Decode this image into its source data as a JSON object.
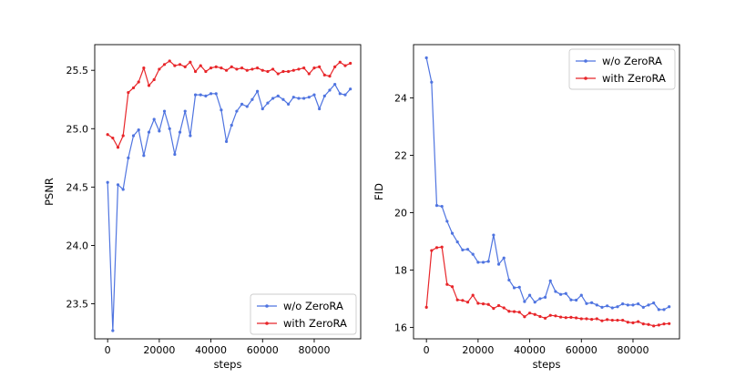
{
  "chart_data": [
    {
      "type": "line",
      "xlabel": "steps",
      "ylabel": "PSNR",
      "xlim": [
        -5000,
        98000
      ],
      "ylim": [
        23.2,
        25.72
      ],
      "xticks": [
        0,
        20000,
        40000,
        60000,
        80000
      ],
      "yticks": [
        23.5,
        24.0,
        24.5,
        25.0,
        25.5
      ],
      "ytick_labels": [
        "23.5",
        "24.0",
        "24.5",
        "25.0",
        "25.5"
      ],
      "legend_position": "lower-right",
      "grid": false,
      "series": [
        {
          "name": "w/o ZeroRA",
          "color": "#4f74e0",
          "x": [
            0,
            2000,
            4000,
            6000,
            8000,
            10000,
            12000,
            14000,
            16000,
            18000,
            20000,
            22000,
            24000,
            26000,
            28000,
            30000,
            32000,
            34000,
            36000,
            38000,
            40000,
            42000,
            44000,
            46000,
            48000,
            50000,
            52000,
            54000,
            56000,
            58000,
            60000,
            62000,
            64000,
            66000,
            68000,
            70000,
            72000,
            74000,
            76000,
            78000,
            80000,
            82000,
            84000,
            86000,
            88000,
            90000,
            92000,
            94000
          ],
          "y": [
            24.54,
            23.27,
            24.52,
            24.48,
            24.75,
            24.94,
            24.99,
            24.77,
            24.97,
            25.08,
            24.98,
            25.15,
            25.0,
            24.78,
            24.97,
            25.15,
            24.94,
            25.29,
            25.29,
            25.28,
            25.3,
            25.3,
            25.16,
            24.89,
            25.03,
            25.15,
            25.21,
            25.19,
            25.25,
            25.32,
            25.17,
            25.22,
            25.26,
            25.28,
            25.25,
            25.21,
            25.27,
            25.26,
            25.26,
            25.27,
            25.29,
            25.17,
            25.28,
            25.33,
            25.38,
            25.3,
            25.29,
            25.34
          ]
        },
        {
          "name": "with ZeroRA",
          "color": "#e8262a",
          "x": [
            0,
            2000,
            4000,
            6000,
            8000,
            10000,
            12000,
            14000,
            16000,
            18000,
            20000,
            22000,
            24000,
            26000,
            28000,
            30000,
            32000,
            34000,
            36000,
            38000,
            40000,
            42000,
            44000,
            46000,
            48000,
            50000,
            52000,
            54000,
            56000,
            58000,
            60000,
            62000,
            64000,
            66000,
            68000,
            70000,
            72000,
            74000,
            76000,
            78000,
            80000,
            82000,
            84000,
            86000,
            88000,
            90000,
            92000,
            94000
          ],
          "y": [
            24.95,
            24.92,
            24.84,
            24.94,
            25.31,
            25.35,
            25.4,
            25.52,
            25.37,
            25.42,
            25.51,
            25.55,
            25.58,
            25.54,
            25.55,
            25.53,
            25.57,
            25.49,
            25.54,
            25.49,
            25.52,
            25.53,
            25.52,
            25.5,
            25.53,
            25.51,
            25.52,
            25.5,
            25.51,
            25.52,
            25.5,
            25.49,
            25.51,
            25.47,
            25.49,
            25.49,
            25.5,
            25.51,
            25.52,
            25.47,
            25.52,
            25.53,
            25.46,
            25.45,
            25.53,
            25.57,
            25.54,
            25.56
          ]
        }
      ]
    },
    {
      "type": "line",
      "xlabel": "steps",
      "ylabel": "FID",
      "xlim": [
        -5000,
        98000
      ],
      "ylim": [
        15.6,
        25.86
      ],
      "xticks": [
        0,
        20000,
        40000,
        60000,
        80000
      ],
      "yticks": [
        16,
        18,
        20,
        22,
        24
      ],
      "ytick_labels": [
        "16",
        "18",
        "20",
        "22",
        "24"
      ],
      "legend_position": "upper-right",
      "grid": false,
      "series": [
        {
          "name": "w/o ZeroRA",
          "color": "#4f74e0",
          "x": [
            0,
            2000,
            4000,
            6000,
            8000,
            10000,
            12000,
            14000,
            16000,
            18000,
            20000,
            22000,
            24000,
            26000,
            28000,
            30000,
            32000,
            34000,
            36000,
            38000,
            40000,
            42000,
            44000,
            46000,
            48000,
            50000,
            52000,
            54000,
            56000,
            58000,
            60000,
            62000,
            64000,
            66000,
            68000,
            70000,
            72000,
            74000,
            76000,
            78000,
            80000,
            82000,
            84000,
            86000,
            88000,
            90000,
            92000,
            94000
          ],
          "y": [
            25.4,
            24.55,
            20.25,
            20.22,
            19.7,
            19.28,
            18.98,
            18.7,
            18.72,
            18.55,
            18.27,
            18.27,
            18.3,
            19.22,
            18.2,
            18.42,
            17.65,
            17.38,
            17.4,
            16.9,
            17.12,
            16.88,
            17.0,
            17.05,
            17.62,
            17.25,
            17.15,
            17.18,
            16.96,
            16.95,
            17.12,
            16.83,
            16.86,
            16.78,
            16.7,
            16.75,
            16.68,
            16.72,
            16.82,
            16.78,
            16.78,
            16.82,
            16.7,
            16.78,
            16.85,
            16.62,
            16.62,
            16.72
          ]
        },
        {
          "name": "with ZeroRA",
          "color": "#e8262a",
          "x": [
            0,
            2000,
            4000,
            6000,
            8000,
            10000,
            12000,
            14000,
            16000,
            18000,
            20000,
            22000,
            24000,
            26000,
            28000,
            30000,
            32000,
            34000,
            36000,
            38000,
            40000,
            42000,
            44000,
            46000,
            48000,
            50000,
            52000,
            54000,
            56000,
            58000,
            60000,
            62000,
            64000,
            66000,
            68000,
            70000,
            72000,
            74000,
            76000,
            78000,
            80000,
            82000,
            84000,
            86000,
            88000,
            90000,
            92000,
            94000
          ],
          "y": [
            16.7,
            18.68,
            18.78,
            18.8,
            17.5,
            17.42,
            16.96,
            16.94,
            16.88,
            17.12,
            16.84,
            16.82,
            16.8,
            16.66,
            16.76,
            16.68,
            16.56,
            16.55,
            16.53,
            16.37,
            16.5,
            16.45,
            16.38,
            16.32,
            16.42,
            16.4,
            16.36,
            16.34,
            16.35,
            16.33,
            16.3,
            16.3,
            16.28,
            16.3,
            16.23,
            16.27,
            16.25,
            16.25,
            16.25,
            16.18,
            16.16,
            16.2,
            16.12,
            16.1,
            16.05,
            16.08,
            16.12,
            16.13
          ]
        }
      ]
    }
  ]
}
